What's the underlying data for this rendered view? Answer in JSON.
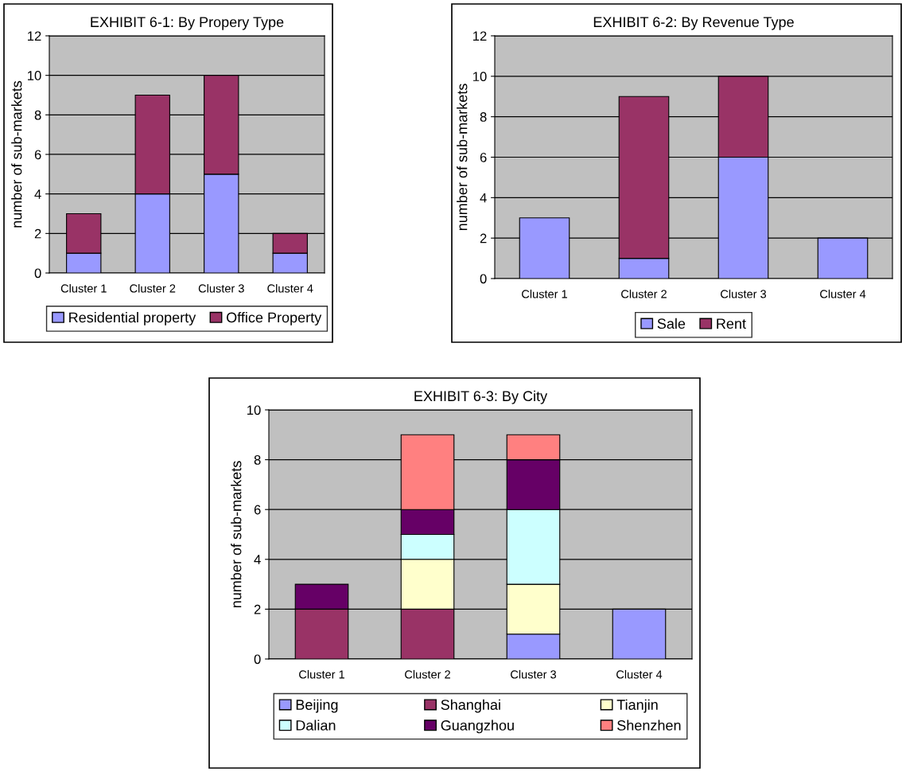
{
  "chart_data": [
    {
      "type": "bar",
      "title": "EXHIBIT 6-1: By Propery Type",
      "ylabel": "number of sub-markets",
      "categories": [
        "Cluster 1",
        "Cluster 2",
        "Cluster 3",
        "Cluster 4"
      ],
      "stacked": true,
      "ylim": [
        0,
        12
      ],
      "yticks": [
        0,
        2,
        4,
        6,
        8,
        10,
        12
      ],
      "grid": "y",
      "legend": "bottom",
      "series": [
        {
          "name": "Residential property",
          "color": "#9999ff",
          "values": [
            1,
            4,
            5,
            1
          ]
        },
        {
          "name": "Office Property",
          "color": "#993366",
          "values": [
            2,
            5,
            5,
            1
          ]
        }
      ]
    },
    {
      "type": "bar",
      "title": "EXHIBIT 6-2: By Revenue Type",
      "ylabel": "number of sub-markets",
      "categories": [
        "Cluster 1",
        "Cluster 2",
        "Cluster 3",
        "Cluster 4"
      ],
      "stacked": true,
      "ylim": [
        0,
        12
      ],
      "yticks": [
        0,
        2,
        4,
        6,
        8,
        10,
        12
      ],
      "grid": "y",
      "legend": "bottom",
      "series": [
        {
          "name": "Sale",
          "color": "#9999ff",
          "values": [
            3,
            1,
            6,
            2
          ]
        },
        {
          "name": "Rent",
          "color": "#993366",
          "values": [
            null,
            8,
            4,
            null
          ]
        }
      ]
    },
    {
      "type": "bar",
      "title": "EXHIBIT 6-3: By City",
      "ylabel": "number of sub-markets",
      "categories": [
        "Cluster 1",
        "Cluster 2",
        "Cluster 3",
        "Cluster 4"
      ],
      "stacked": true,
      "ylim": [
        0,
        10
      ],
      "yticks": [
        0,
        2,
        4,
        6,
        8,
        10
      ],
      "grid": "y",
      "legend": "bottom",
      "series": [
        {
          "name": "Beijing",
          "color": "#9999ff",
          "values": [
            null,
            null,
            1,
            2
          ]
        },
        {
          "name": "Shanghai",
          "color": "#993366",
          "values": [
            2,
            2,
            null,
            null
          ]
        },
        {
          "name": "Tianjin",
          "color": "#ffffcc",
          "values": [
            null,
            2,
            2,
            null
          ]
        },
        {
          "name": "Dalian",
          "color": "#ccffff",
          "values": [
            null,
            1,
            3,
            null
          ]
        },
        {
          "name": "Guangzhou",
          "color": "#660066",
          "values": [
            1,
            1,
            2,
            null
          ]
        },
        {
          "name": "Shenzhen",
          "color": "#ff8080",
          "values": [
            null,
            3,
            1,
            null
          ]
        }
      ]
    }
  ]
}
